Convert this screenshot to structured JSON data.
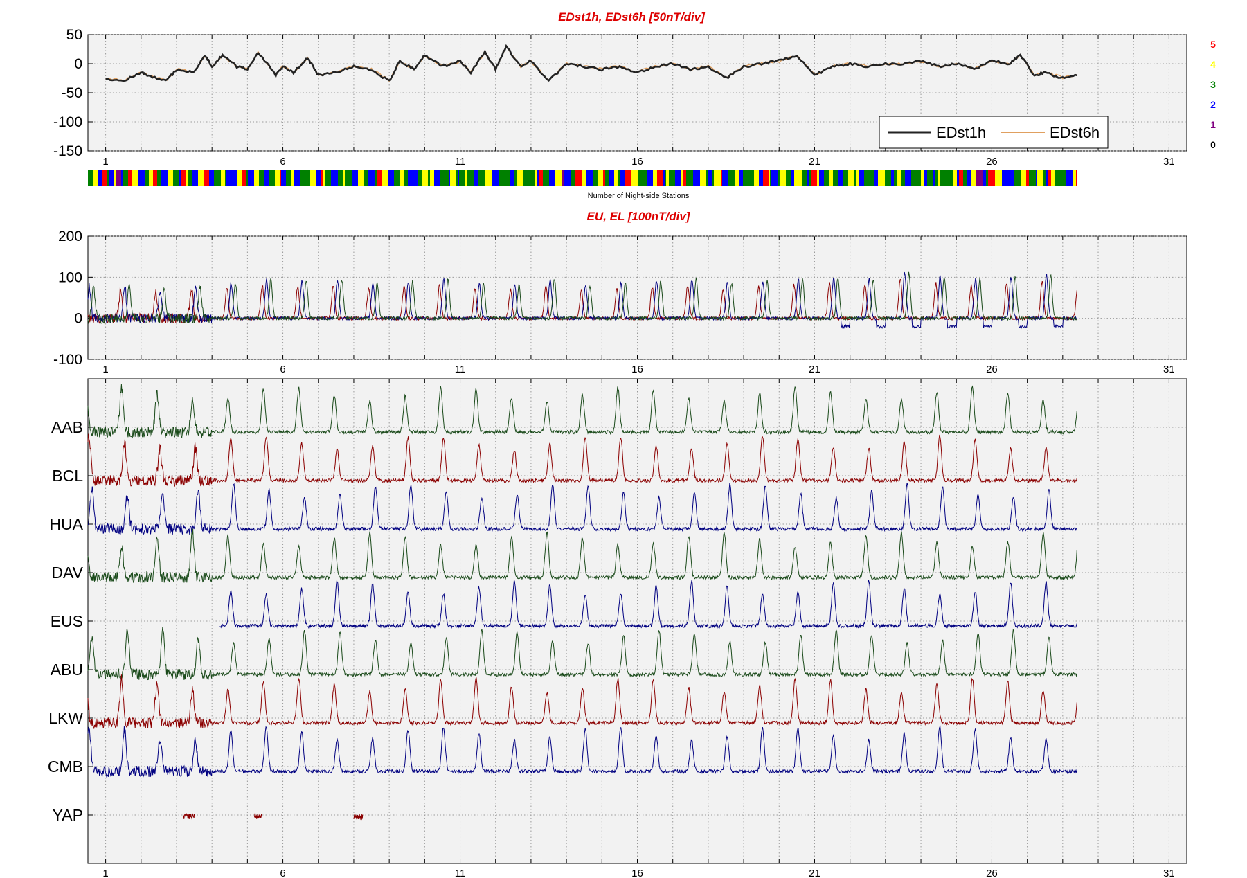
{
  "chart_data": [
    {
      "type": "line",
      "title": "EDst1h, EDst6h [50nT/div]",
      "ylim": [
        -150,
        50
      ],
      "yticks": [
        50,
        0,
        -50,
        -100,
        -150
      ],
      "xticks": [
        1,
        6,
        11,
        16,
        21,
        26,
        31
      ],
      "xlim": [
        0.5,
        31.5
      ],
      "grid": true,
      "legend_position": "bottom-right",
      "series": [
        {
          "name": "EDst1h",
          "color": "#222222",
          "x": [
            1,
            1.5,
            2,
            2.2,
            2.7,
            3,
            3.5,
            3.8,
            4,
            4.3,
            4.7,
            5,
            5.3,
            5.8,
            6,
            6.3,
            6.7,
            7,
            7.5,
            8,
            8.5,
            9,
            9.3,
            9.7,
            10,
            10.5,
            11,
            11.3,
            11.7,
            12,
            12.3,
            12.7,
            13,
            13.5,
            14,
            14.5,
            15,
            15.5,
            16,
            16.5,
            17,
            17.5,
            18,
            18.5,
            19,
            19.5,
            20,
            20.5,
            21,
            21.5,
            22,
            22.5,
            23,
            23.5,
            24,
            24.5,
            25,
            25.5,
            26,
            26.5,
            26.8,
            27.2,
            27.5,
            28,
            28.4
          ],
          "y": [
            -25,
            -30,
            -15,
            -20,
            -30,
            -10,
            -15,
            15,
            -5,
            15,
            -5,
            -10,
            20,
            -20,
            -5,
            -15,
            10,
            -20,
            -15,
            -5,
            -10,
            -30,
            5,
            -10,
            15,
            -5,
            5,
            -15,
            20,
            -10,
            30,
            -5,
            5,
            -30,
            0,
            -5,
            -10,
            -5,
            -15,
            -5,
            0,
            -10,
            -5,
            -25,
            -5,
            0,
            5,
            15,
            -20,
            -5,
            0,
            -5,
            0,
            0,
            5,
            -5,
            0,
            -10,
            5,
            0,
            15,
            -20,
            -15,
            -25,
            -20
          ]
        },
        {
          "name": "EDst6h",
          "color": "#e0a060",
          "x": [
            1,
            1.5,
            2,
            2.2,
            2.7,
            3,
            3.5,
            3.8,
            4,
            4.3,
            4.7,
            5,
            5.3,
            5.8,
            6,
            6.3,
            6.7,
            7,
            7.5,
            8,
            8.5,
            9,
            9.3,
            9.7,
            10,
            10.5,
            11,
            11.3,
            11.7,
            12,
            12.3,
            12.7,
            13,
            13.5,
            14,
            14.5,
            15,
            15.5,
            16,
            16.5,
            17,
            17.5,
            18,
            18.5,
            19,
            19.5,
            20,
            20.5,
            21,
            21.5,
            22,
            22.5,
            23,
            23.5,
            24,
            24.5,
            25,
            25.5,
            26,
            26.5,
            26.8,
            27.2,
            27.5,
            28,
            28.4
          ],
          "y": [
            -24,
            -29,
            -14,
            -19,
            -29,
            -9,
            -14,
            14,
            -4,
            14,
            -4,
            -9,
            19,
            -19,
            -4,
            -14,
            9,
            -19,
            -14,
            -4,
            -9,
            -29,
            4,
            -9,
            14,
            -4,
            4,
            -14,
            19,
            -9,
            29,
            -4,
            4,
            -29,
            0,
            -4,
            -9,
            -4,
            -14,
            -4,
            0,
            -9,
            -4,
            -24,
            -4,
            0,
            4,
            14,
            -19,
            -4,
            0,
            -4,
            0,
            0,
            4,
            -4,
            0,
            -9,
            4,
            0,
            14,
            -19,
            -14,
            -24,
            -19
          ]
        }
      ]
    },
    {
      "type": "heatmap",
      "label": "Number of Night-side Stations",
      "scale": [
        {
          "value": "5",
          "color": "#ff0000"
        },
        {
          "value": "4",
          "color": "#ffff00"
        },
        {
          "value": "3",
          "color": "#008000"
        },
        {
          "value": "2",
          "color": "#0000ff"
        },
        {
          "value": "1",
          "color": "#800080"
        },
        {
          "value": "0",
          "color": "#000000"
        }
      ],
      "x_range": [
        0.5,
        28.4
      ],
      "pattern": [
        3,
        3,
        4,
        2,
        5,
        3,
        2,
        4,
        1,
        2,
        3,
        5,
        4,
        2,
        2,
        3,
        4,
        5,
        3,
        2,
        4,
        3,
        2,
        5,
        4,
        3,
        3,
        2,
        4,
        5,
        2,
        3,
        4,
        3,
        2,
        2,
        4,
        5,
        3,
        2,
        4,
        3,
        2,
        3,
        4,
        5,
        2,
        3,
        4,
        2,
        3,
        3,
        4,
        2,
        5,
        4,
        3,
        2,
        3,
        4,
        3,
        2,
        4,
        4,
        3,
        2,
        3,
        5,
        4,
        2,
        3,
        4,
        3,
        2,
        2,
        3,
        4,
        3,
        4,
        2,
        3,
        3,
        2,
        4,
        3,
        2,
        3,
        4,
        3,
        2,
        3,
        3,
        4,
        2,
        3,
        3,
        2,
        3,
        4,
        3
      ]
    },
    {
      "type": "line",
      "title": "EU, EL   [100nT/div]",
      "ylim": [
        -100,
        200
      ],
      "yticks": [
        200,
        100,
        0,
        -100
      ],
      "xticks": [
        1,
        6,
        11,
        16,
        21,
        26,
        31
      ],
      "xlim": [
        0.5,
        31.5
      ],
      "grid": true,
      "series_colors": [
        "#8b0000",
        "#000080",
        "#1a4a1a"
      ],
      "daily_peak_amplitude": [
        75,
        70,
        80,
        85,
        95,
        90,
        95,
        85,
        90,
        95,
        85,
        80,
        95,
        80,
        85,
        90,
        95,
        85,
        90,
        95,
        100,
        95,
        110,
        100,
        95,
        100,
        105,
        90
      ]
    },
    {
      "type": "line",
      "xticks": [
        1,
        6,
        11,
        16,
        21,
        26,
        31
      ],
      "xlim": [
        0.5,
        31.5
      ],
      "grid": true,
      "stations": [
        {
          "label": "AAB",
          "color": "#1a4a1a",
          "offset": 1
        },
        {
          "label": "BCL",
          "color": "#8b0000",
          "offset": 2
        },
        {
          "label": "HUA",
          "color": "#000080",
          "offset": 3
        },
        {
          "label": "DAV",
          "color": "#1a4a1a",
          "offset": 4
        },
        {
          "label": "EUS",
          "color": "#000080",
          "offset": 5
        },
        {
          "label": "ABU",
          "color": "#1a4a1a",
          "offset": 6
        },
        {
          "label": "LKW",
          "color": "#8b0000",
          "offset": 7
        },
        {
          "label": "CMB",
          "color": "#000080",
          "offset": 8
        },
        {
          "label": "YAP",
          "color": "#8b0000",
          "offset": 9
        }
      ]
    }
  ]
}
